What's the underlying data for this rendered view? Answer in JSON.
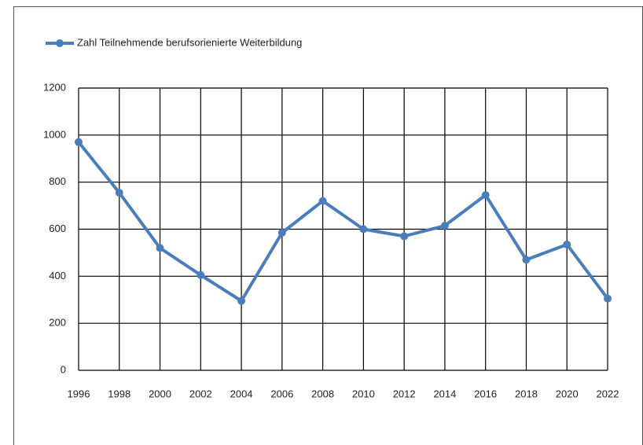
{
  "chart_data": {
    "type": "line",
    "x": [
      1996,
      1998,
      2000,
      2002,
      2004,
      2006,
      2008,
      2010,
      2012,
      2014,
      2016,
      2018,
      2020,
      2022
    ],
    "series": [
      {
        "name": "Zahl Teilnehmende berufsorienierte Weiterbildung",
        "color": "#4a7ebb",
        "values": [
          970,
          755,
          520,
          405,
          295,
          585,
          720,
          600,
          570,
          615,
          745,
          470,
          535,
          305
        ]
      }
    ],
    "xlim": [
      1996,
      2022
    ],
    "xticks": [
      1996,
      1998,
      2000,
      2002,
      2004,
      2006,
      2008,
      2010,
      2012,
      2014,
      2016,
      2018,
      2020,
      2022
    ],
    "ylim": [
      0,
      1200
    ],
    "yticks": [
      0,
      200,
      400,
      600,
      800,
      1000,
      1200
    ],
    "grid": true,
    "legend": "top-left"
  }
}
